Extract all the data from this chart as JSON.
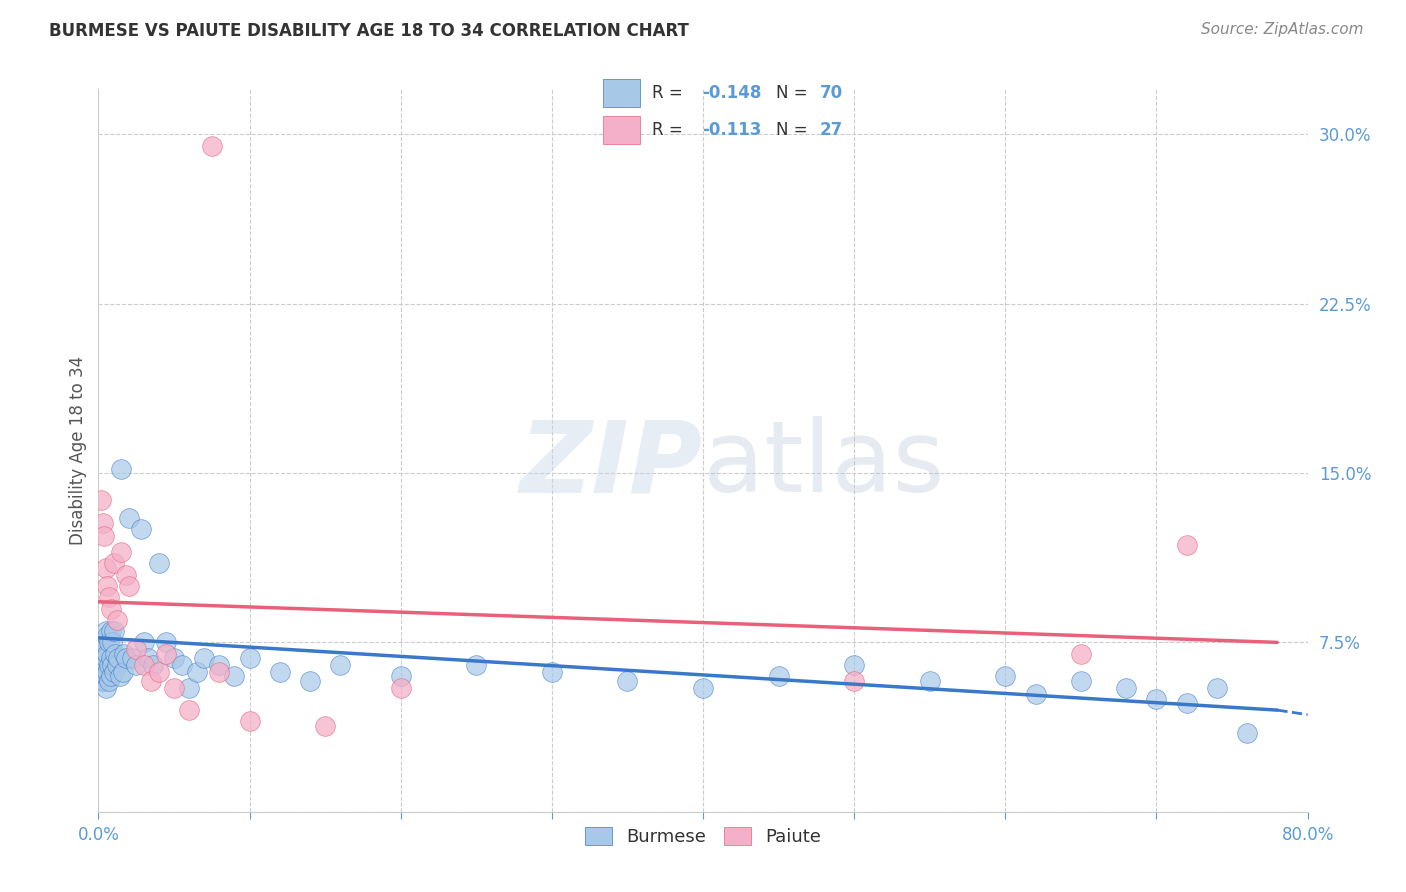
{
  "title": "BURMESE VS PAIUTE DISABILITY AGE 18 TO 34 CORRELATION CHART",
  "source": "Source: ZipAtlas.com",
  "ylabel": "Disability Age 18 to 34",
  "x_min": 0.0,
  "x_max": 0.8,
  "y_min": 0.0,
  "y_max": 0.32,
  "x_ticks": [
    0.0,
    0.1,
    0.2,
    0.3,
    0.4,
    0.5,
    0.6,
    0.7,
    0.8
  ],
  "y_ticks": [
    0.0,
    0.075,
    0.15,
    0.225,
    0.3
  ],
  "burmese_color": "#a8c8e8",
  "paiute_color": "#f4b0c8",
  "burmese_line_color": "#3a78c9",
  "paiute_line_color": "#e8607a",
  "burmese_R": -0.148,
  "burmese_N": 70,
  "paiute_R": -0.113,
  "paiute_N": 27,
  "watermark": "ZIPatlas",
  "background_color": "#ffffff",
  "grid_color": "#cccccc",
  "tick_label_color": "#5b9bd5",
  "text_color": "#333333",
  "burmese_x": [
    0.001,
    0.002,
    0.002,
    0.003,
    0.003,
    0.003,
    0.004,
    0.004,
    0.004,
    0.005,
    0.005,
    0.005,
    0.005,
    0.006,
    0.006,
    0.006,
    0.007,
    0.007,
    0.007,
    0.008,
    0.008,
    0.008,
    0.009,
    0.009,
    0.01,
    0.01,
    0.011,
    0.012,
    0.013,
    0.014,
    0.015,
    0.016,
    0.017,
    0.018,
    0.02,
    0.022,
    0.025,
    0.028,
    0.03,
    0.033,
    0.036,
    0.04,
    0.045,
    0.05,
    0.055,
    0.06,
    0.065,
    0.07,
    0.08,
    0.09,
    0.1,
    0.12,
    0.14,
    0.16,
    0.2,
    0.25,
    0.3,
    0.35,
    0.4,
    0.45,
    0.5,
    0.55,
    0.6,
    0.62,
    0.65,
    0.68,
    0.7,
    0.72,
    0.74,
    0.76
  ],
  "burmese_y": [
    0.072,
    0.068,
    0.062,
    0.075,
    0.065,
    0.058,
    0.072,
    0.065,
    0.058,
    0.08,
    0.068,
    0.06,
    0.055,
    0.078,
    0.07,
    0.062,
    0.075,
    0.065,
    0.058,
    0.08,
    0.068,
    0.06,
    0.075,
    0.065,
    0.08,
    0.062,
    0.07,
    0.065,
    0.068,
    0.06,
    0.152,
    0.062,
    0.07,
    0.068,
    0.13,
    0.068,
    0.065,
    0.125,
    0.075,
    0.068,
    0.065,
    0.11,
    0.075,
    0.068,
    0.065,
    0.055,
    0.062,
    0.068,
    0.065,
    0.06,
    0.068,
    0.062,
    0.058,
    0.065,
    0.06,
    0.065,
    0.062,
    0.058,
    0.055,
    0.06,
    0.065,
    0.058,
    0.06,
    0.052,
    0.058,
    0.055,
    0.05,
    0.048,
    0.055,
    0.035
  ],
  "paiute_x": [
    0.002,
    0.003,
    0.004,
    0.005,
    0.006,
    0.007,
    0.008,
    0.01,
    0.012,
    0.015,
    0.018,
    0.02,
    0.025,
    0.03,
    0.035,
    0.04,
    0.045,
    0.05,
    0.06,
    0.08,
    0.1,
    0.15,
    0.2,
    0.5,
    0.65,
    0.72,
    0.075
  ],
  "paiute_y": [
    0.138,
    0.128,
    0.122,
    0.108,
    0.1,
    0.095,
    0.09,
    0.11,
    0.085,
    0.115,
    0.105,
    0.1,
    0.072,
    0.065,
    0.058,
    0.062,
    0.07,
    0.055,
    0.045,
    0.062,
    0.04,
    0.038,
    0.055,
    0.058,
    0.07,
    0.118,
    0.295
  ],
  "burmese_line_x0": 0.0,
  "burmese_line_x1": 0.78,
  "burmese_line_y0": 0.077,
  "burmese_line_y1": 0.045,
  "paiute_line_x0": 0.0,
  "paiute_line_x1": 0.78,
  "paiute_line_y0": 0.093,
  "paiute_line_y1": 0.075
}
